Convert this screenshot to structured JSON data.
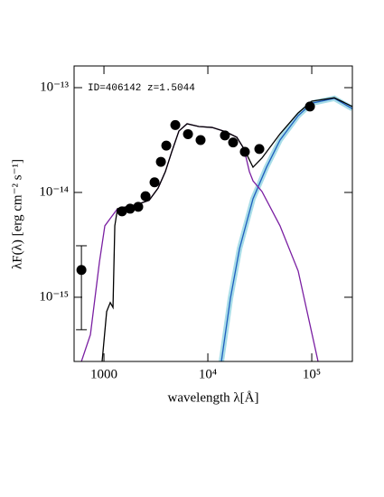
{
  "chart_data": {
    "type": "line",
    "annotation": "ID=406142 z=1.5044",
    "x_label": "wavelength λ[Å]",
    "y_label": "λF(λ) [erg cm⁻² s⁻¹]",
    "xscale": "log",
    "yscale": "log",
    "xlim": [
      516,
      246000
    ],
    "ylim": [
      2.44e-16,
      1.61e-13
    ],
    "xticks": [
      1000,
      {
        "value": 10000,
        "label": "10⁴"
      },
      {
        "value": 100000,
        "label": "10⁵"
      }
    ],
    "yticks": [
      {
        "value": 1e-15,
        "label": "10⁻¹⁵"
      },
      {
        "value": 1e-14,
        "label": "10⁻¹⁴"
      },
      {
        "value": 1e-13,
        "label": "10⁻¹³"
      }
    ],
    "series": [
      {
        "color": "#1f5fbf",
        "band_color": "#a8dde8",
        "x": [
          13500,
          16500,
          20200,
          27200,
          36700,
          49500,
          74000,
          100000,
          165000,
          246000
        ],
        "values": [
          2.44e-16,
          9.8e-16,
          2.92e-15,
          8.7e-15,
          1.74e-14,
          3.16e-14,
          5.4e-14,
          7.1e-14,
          7.9e-14,
          6.3e-14
        ]
      },
      {
        "color": "#7a1fa2",
        "x": [
          607,
          741,
          905,
          1020,
          1174,
          1351,
          2015,
          2720,
          3320,
          3900,
          4490,
          5270,
          6310,
          8190,
          11000,
          14900,
          19000,
          22300,
          25100,
          27200,
          33200,
          49500,
          74000,
          115000
        ],
        "values": [
          2.44e-16,
          4.4e-16,
          2.17e-15,
          4.8e-15,
          5.8e-15,
          7e-15,
          7.6e-15,
          8.4e-15,
          1.1e-14,
          1.58e-14,
          2.44e-14,
          3.86e-14,
          4.52e-14,
          4.26e-14,
          4.17e-14,
          3.79e-14,
          3.36e-14,
          2.6e-14,
          1.58e-14,
          1.29e-14,
          1.02e-14,
          4.8e-15,
          1.78e-15,
          2.44e-16
        ]
      },
      {
        "color": "#000000",
        "x": [
          960,
          1062,
          1150,
          1222,
          1272,
          1351,
          2015,
          2720,
          3320,
          3900,
          4490,
          5270,
          6310,
          8190,
          11000,
          14900,
          19000,
          22300,
          27200,
          33200,
          49500,
          74000,
          100000,
          165000,
          246000
        ],
        "values": [
          2.44e-16,
          7.3e-16,
          8.9e-16,
          8e-16,
          4.8e-15,
          7e-15,
          7.6e-15,
          8.4e-15,
          1.1e-14,
          1.58e-14,
          2.44e-14,
          3.86e-14,
          4.52e-14,
          4.26e-14,
          4.17e-14,
          3.79e-14,
          3.36e-14,
          2.6e-14,
          1.74e-14,
          2.13e-14,
          3.62e-14,
          5.74e-14,
          7.43e-14,
          8e-14,
          6.6e-14
        ]
      },
      {
        "color": "#000000",
        "marker": "circle",
        "x": [
          607,
          1493,
          1786,
          2138,
          2513,
          3069,
          3532,
          3981,
          4864,
          6440,
          8511,
          14600,
          17500,
          22700,
          31300,
          96100
        ],
        "values": [
          1.82e-15,
          6.6e-15,
          7e-15,
          7.3e-15,
          9.2e-15,
          1.25e-14,
          1.96e-14,
          2.8e-14,
          4.4e-14,
          3.6e-14,
          3.16e-14,
          3.5e-14,
          3e-14,
          2.44e-14,
          2.6e-14,
          6.6e-14
        ],
        "yerr": [
          [
            1.33e-15,
            1.28e-15
          ],
          null,
          null,
          null,
          null,
          null,
          null,
          null,
          null,
          null,
          null,
          null,
          null,
          null,
          null,
          null
        ]
      }
    ]
  }
}
